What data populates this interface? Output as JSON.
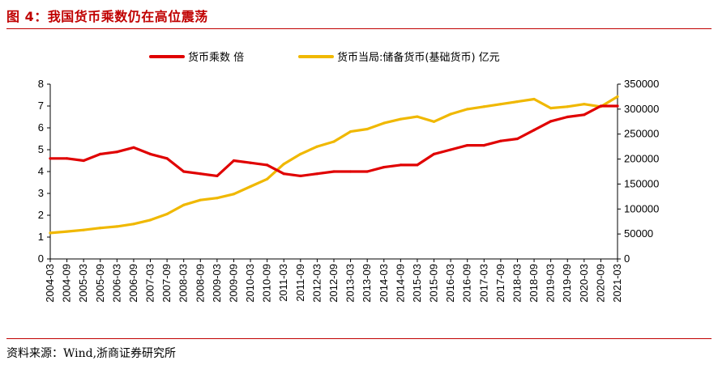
{
  "title": "图 4：我国货币乘数仍在高位震荡",
  "source": "资料来源：Wind,浙商证券研究所",
  "colors": {
    "title": "#c00000",
    "money_multiplier": "#e00000",
    "reserves": "#f0b800"
  },
  "chart_data": {
    "type": "line",
    "title": "图 4：我国货币乘数仍在高位震荡",
    "legend": [
      "货币乘数 倍",
      "货币当局:储备货币(基础货币) 亿元"
    ],
    "legend_position": "top-center",
    "x_tick_labels": [
      "2004-03",
      "2004-09",
      "2005-03",
      "2005-09",
      "2006-03",
      "2006-09",
      "2007-03",
      "2007-09",
      "2008-03",
      "2008-09",
      "2009-03",
      "2009-09",
      "2010-03",
      "2010-09",
      "2011-03",
      "2011-09",
      "2012-03",
      "2012-09",
      "2013-03",
      "2013-09",
      "2014-03",
      "2014-09",
      "2015-03",
      "2015-09",
      "2016-03",
      "2016-09",
      "2017-03",
      "2017-09",
      "2018-03",
      "2018-09",
      "2019-03",
      "2019-09",
      "2020-03",
      "2020-09",
      "2021-03"
    ],
    "y_left": {
      "label": "货币乘数 倍",
      "lim": [
        0,
        8
      ],
      "ticks": [
        "0",
        "1",
        "2",
        "3",
        "4",
        "5",
        "6",
        "7",
        "8"
      ]
    },
    "y_right": {
      "label": "货币当局:储备货币(基础货币) 亿元",
      "lim": [
        0,
        350000
      ],
      "ticks": [
        "0",
        "50000",
        "100000",
        "150000",
        "200000",
        "250000",
        "300000",
        "350000"
      ]
    },
    "series": [
      {
        "name": "货币乘数 倍",
        "axis": "left",
        "values": [
          4.6,
          4.6,
          4.5,
          4.8,
          4.9,
          5.1,
          4.8,
          4.6,
          4.0,
          3.9,
          3.8,
          4.5,
          4.4,
          4.3,
          3.9,
          3.8,
          3.9,
          4.0,
          4.0,
          4.0,
          4.2,
          4.3,
          4.3,
          4.8,
          5.0,
          5.2,
          5.2,
          5.4,
          5.5,
          5.9,
          6.3,
          6.5,
          6.6,
          7.0,
          7.0
        ]
      },
      {
        "name": "货币当局:储备货币(基础货币) 亿元",
        "axis": "right",
        "values": [
          52000,
          55000,
          58000,
          62000,
          65000,
          70000,
          78000,
          90000,
          108000,
          118000,
          122000,
          130000,
          145000,
          160000,
          190000,
          210000,
          225000,
          235000,
          255000,
          260000,
          272000,
          280000,
          285000,
          275000,
          290000,
          300000,
          305000,
          310000,
          315000,
          320000,
          302000,
          305000,
          310000,
          305000,
          325000
        ]
      }
    ]
  }
}
